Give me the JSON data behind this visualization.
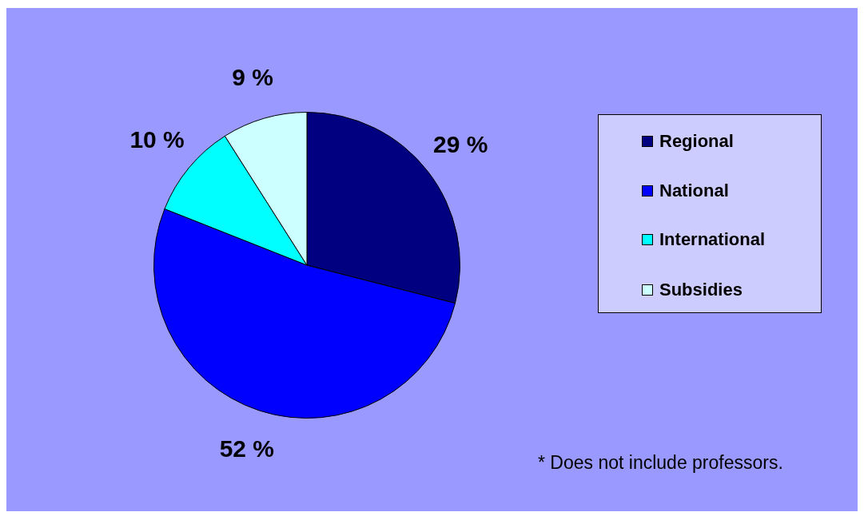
{
  "chart_data": {
    "type": "pie",
    "categories": [
      "Regional",
      "National",
      "International",
      "Subsidies"
    ],
    "values": [
      29,
      52,
      10,
      9
    ],
    "colors": [
      "#000080",
      "#0000ff",
      "#00ffff",
      "#ccffff"
    ],
    "value_labels": [
      "29 %",
      "52 %",
      "10 %",
      "9 %"
    ],
    "legend": "right",
    "annotations": [
      "* Does not include professors."
    ]
  }
}
